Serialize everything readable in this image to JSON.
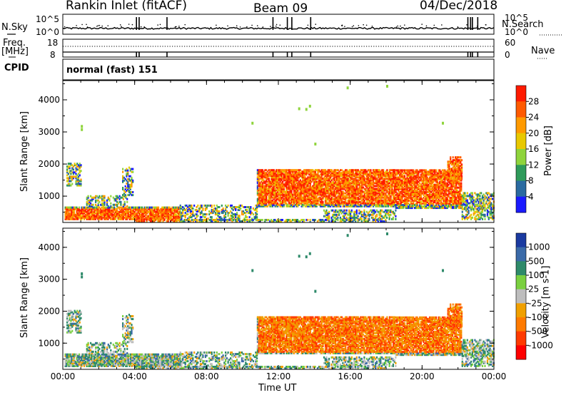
{
  "header": {
    "station": "Rankin Inlet (fitACF)",
    "beam": "Beam 09",
    "date": "04/Dec/2018"
  },
  "noise_panel": {
    "left_label": "N.Sky",
    "right_label": "N.Search",
    "left_ticks": [
      "10^5",
      "10^0"
    ],
    "right_ticks": [
      "10^5",
      "10^0"
    ]
  },
  "freq_panel": {
    "left_label_1": "Freq.",
    "left_label_2": "[MHz]",
    "right_label": "Nave",
    "left_ticks": [
      "18",
      "8"
    ],
    "right_ticks": [
      "60",
      "0"
    ]
  },
  "cpid": {
    "label": "CPID",
    "value": "normal (fast) 151"
  },
  "chart_data": [
    {
      "type": "heatmap",
      "parameter": "power",
      "ylabel": "Slant Range [km]",
      "y_ticks": [
        "4000",
        "3000",
        "2000",
        "1000"
      ],
      "y_tick_values": [
        4000,
        3000,
        2000,
        1000
      ],
      "ylim": [
        180,
        4600
      ],
      "colorbar": {
        "label": "Power [dB]",
        "ticks": [
          "28",
          "24",
          "20",
          "16",
          "12",
          "8",
          "4"
        ],
        "colors": [
          "#ff1a00",
          "#ff5a00",
          "#ff9a00",
          "#e8c800",
          "#8fd43c",
          "#2e9a5a",
          "#2a6aa0",
          "#1a1aff"
        ]
      }
    },
    {
      "type": "heatmap",
      "parameter": "velocity",
      "ylabel": "Slant Range [km]",
      "y_ticks": [
        "4000",
        "3000",
        "2000",
        "1000"
      ],
      "y_tick_values": [
        4000,
        3000,
        2000,
        1000
      ],
      "ylim": [
        180,
        4600
      ],
      "colorbar": {
        "label": "Velocity [m s-1]",
        "ticks": [
          "1000",
          "500",
          "100",
          "25",
          "-25",
          "-100",
          "-500",
          "-1000"
        ],
        "colors": [
          "#1a3aa0",
          "#3a6aa8",
          "#2e8a6a",
          "#7ad040",
          "#bdbdbd",
          "#f0a000",
          "#ff7a00",
          "#ff3a00",
          "#ff0000"
        ]
      }
    }
  ],
  "x_axis": {
    "label": "Time UT",
    "ticks": [
      "00:00",
      "04:00",
      "08:00",
      "12:00",
      "16:00",
      "20:00",
      "00:00"
    ],
    "tick_hours": [
      0,
      4,
      8,
      12,
      16,
      20,
      24
    ],
    "xlim_hours": [
      0,
      24
    ]
  }
}
